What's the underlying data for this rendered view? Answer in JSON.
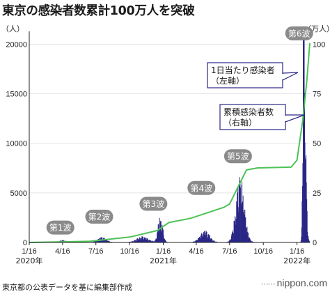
{
  "title": "東京の感染者数累計100万人を突破",
  "source": "東京都の公表データを基に編集部作成",
  "brand": "nippon.com",
  "colors": {
    "bars": "#2b2787",
    "cumulative_line": "#4cc256",
    "wave_bubble": "#8a8a8a",
    "callout_border": "#2b2787",
    "grid": "#dddddd"
  },
  "chart_data": {
    "type": "bar+line",
    "title": "東京の感染者数累計100万人を突破",
    "left_axis": {
      "unit_label": "（人）",
      "ticks": [
        0,
        5000,
        10000,
        15000,
        20000
      ],
      "range": [
        0,
        21300
      ]
    },
    "right_axis": {
      "unit_label": "（万人）",
      "ticks": [
        0,
        25,
        50,
        75,
        100
      ],
      "range": [
        0,
        106.5
      ]
    },
    "x_axis": {
      "ticks": [
        "1/16",
        "4/16",
        "7/16",
        "10/16",
        "1/16",
        "4/16",
        "7/16",
        "10/16",
        "1/16"
      ],
      "tick_dates": [
        "2020-01-16",
        "2020-04-16",
        "2020-07-16",
        "2020-10-16",
        "2021-01-16",
        "2021-04-16",
        "2021-07-16",
        "2021-10-16",
        "2022-01-16"
      ],
      "year_labels": [
        "2020年",
        "2021年",
        "2022年"
      ],
      "range": [
        "2020-01-16",
        "2022-02-20"
      ]
    },
    "grid": true,
    "series": [
      {
        "name": "1日当たり感染者（左軸）",
        "type": "bar",
        "axis": "left",
        "peaks": [
          {
            "date": "2020-04-15",
            "value": 200
          },
          {
            "date": "2020-08-01",
            "value": 470
          },
          {
            "date": "2020-11-20",
            "value": 530
          },
          {
            "date": "2021-01-07",
            "value": 2450
          },
          {
            "date": "2021-05-08",
            "value": 1100
          },
          {
            "date": "2021-08-13",
            "value": 5900
          },
          {
            "date": "2022-02-02",
            "value": 21500
          }
        ]
      },
      {
        "name": "累積感染者数（右軸）",
        "type": "line",
        "axis": "right",
        "points": [
          [
            "2020-01-16",
            0
          ],
          [
            "2020-07-01",
            0.6
          ],
          [
            "2020-10-16",
            2.7
          ],
          [
            "2020-12-31",
            6.0
          ],
          [
            "2021-01-31",
            10.0
          ],
          [
            "2021-04-01",
            12.2
          ],
          [
            "2021-07-01",
            17.8
          ],
          [
            "2021-07-16",
            19.4
          ],
          [
            "2021-08-31",
            36.6
          ],
          [
            "2021-10-01",
            37.6
          ],
          [
            "2021-12-31",
            38.0
          ],
          [
            "2022-01-16",
            41.5
          ],
          [
            "2022-02-01",
            62.0
          ],
          [
            "2022-02-12",
            82.0
          ],
          [
            "2022-02-20",
            100.6
          ]
        ]
      }
    ],
    "annotations": {
      "waves": [
        {
          "label": "第1波",
          "date": "2020-04-10",
          "value": 1500
        },
        {
          "label": "第2波",
          "date": "2020-07-25",
          "value": 2600
        },
        {
          "label": "第3波",
          "date": "2020-12-20",
          "value": 3900
        },
        {
          "label": "第4波",
          "date": "2021-04-30",
          "value": 5500
        },
        {
          "label": "第5波",
          "date": "2021-08-08",
          "value": 8700
        },
        {
          "label": "第6波",
          "date": "2022-01-22",
          "value": 21100
        }
      ],
      "callouts": [
        {
          "lines": [
            "1日当たり感染者",
            "（左軸）"
          ]
        },
        {
          "lines": [
            "累積感染者数",
            "（右軸）"
          ]
        }
      ]
    }
  }
}
